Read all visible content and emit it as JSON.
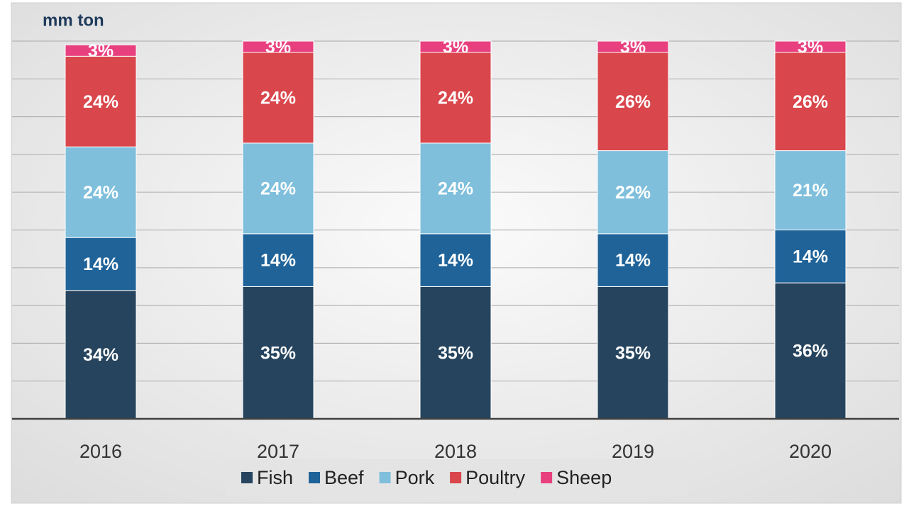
{
  "chart_data": {
    "type": "stacked_bar",
    "title": "mm ton",
    "categories": [
      "2016",
      "2017",
      "2018",
      "2019",
      "2020"
    ],
    "series": [
      {
        "name": "Fish",
        "color": "#26445e",
        "values": [
          34,
          35,
          35,
          35,
          36
        ],
        "value_labels": [
          "34%",
          "35%",
          "35%",
          "35%",
          "36%"
        ]
      },
      {
        "name": "Beef",
        "color": "#1f6399",
        "values": [
          14,
          14,
          14,
          14,
          14
        ],
        "value_labels": [
          "14%",
          "14%",
          "14%",
          "14%",
          "14%"
        ]
      },
      {
        "name": "Pork",
        "color": "#7fbfdc",
        "values": [
          24,
          24,
          24,
          22,
          21
        ],
        "value_labels": [
          "24%",
          "24%",
          "24%",
          "22%",
          "21%"
        ]
      },
      {
        "name": "Poultry",
        "color": "#d9464b",
        "values": [
          24,
          24,
          24,
          26,
          26
        ],
        "value_labels": [
          "24%",
          "24%",
          "24%",
          "26%",
          "26%"
        ]
      },
      {
        "name": "Sheep",
        "color": "#e8407f",
        "values": [
          3,
          3,
          3,
          3,
          3
        ],
        "value_labels": [
          "3%",
          "3%",
          "3%",
          "3%",
          "3%"
        ]
      }
    ],
    "ylim": [
      0,
      100
    ],
    "yticks": [
      0,
      10,
      20,
      30,
      40,
      50,
      60,
      70,
      80,
      90,
      100
    ],
    "grid": true
  }
}
